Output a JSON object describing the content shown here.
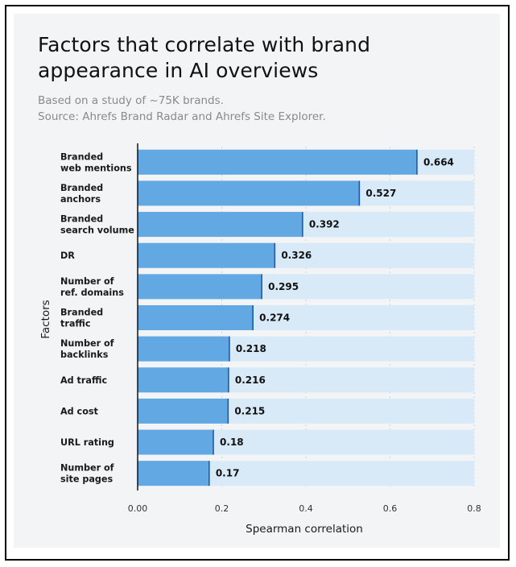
{
  "header": {
    "title": "Factors that correlate with brand appearance in AI overviews",
    "subtitle_line1": "Based on a study of ~75K brands.",
    "subtitle_line2": "Source: Ahrefs Brand Radar and Ahrefs Site Explorer."
  },
  "colors": {
    "bar": "#62a8e2",
    "bar_edge": "#1f5aa8",
    "bar_track": "#d8eaf8",
    "card_bg": "#f3f4f6"
  },
  "chart_data": {
    "type": "bar",
    "orientation": "horizontal",
    "title": "Factors that correlate with brand appearance in AI overviews",
    "subtitle": "Based on a study of ~75K brands. Source: Ahrefs Brand Radar and Ahrefs Site Explorer.",
    "xlabel": "Spearman correlation",
    "ylabel": "Factors",
    "xlim": [
      0,
      0.8
    ],
    "xticks": [
      "0.00",
      "0.2",
      "0.4",
      "0.6",
      "0.8"
    ],
    "grid": true,
    "categories": [
      [
        "Branded",
        "web mentions"
      ],
      [
        "Branded",
        "anchors"
      ],
      [
        "Branded",
        "search volume"
      ],
      [
        "DR"
      ],
      [
        "Number of",
        "ref. domains"
      ],
      [
        "Branded",
        "traffic"
      ],
      [
        "Number of",
        "backlinks"
      ],
      [
        "Ad traffic"
      ],
      [
        "Ad cost"
      ],
      [
        "URL rating"
      ],
      [
        "Number of",
        "site pages"
      ]
    ],
    "values": [
      0.664,
      0.527,
      0.392,
      0.326,
      0.295,
      0.274,
      0.218,
      0.216,
      0.215,
      0.18,
      0.17
    ],
    "value_labels": [
      "0.664",
      "0.527",
      "0.392",
      "0.326",
      "0.295",
      "0.274",
      "0.218",
      "0.216",
      "0.215",
      "0.18",
      "0.17"
    ]
  }
}
